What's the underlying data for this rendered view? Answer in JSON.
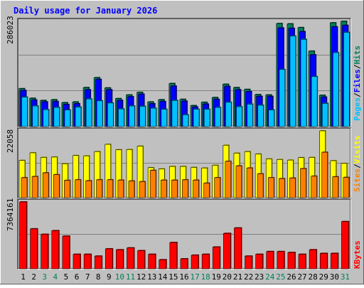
{
  "colors": {
    "background": "#c0c0c0",
    "plot_bg": "#c0c0c0",
    "title": "#0000ff",
    "hits": "#00805c",
    "files": "#0000ff",
    "pages": "#00c0ff",
    "visits": "#ffff00",
    "sites": "#ff8000",
    "kbytes": "#ff0000",
    "weekend_day": "#00805c",
    "weekday": "#000000"
  },
  "chart_data": [
    {
      "type": "bar",
      "title": "Daily usage for January 2026",
      "categories": [
        "1",
        "2",
        "3",
        "4",
        "5",
        "6",
        "7",
        "8",
        "9",
        "10",
        "11",
        "12",
        "13",
        "14",
        "15",
        "16",
        "17",
        "18",
        "19",
        "20",
        "21",
        "22",
        "23",
        "24",
        "25",
        "26",
        "27",
        "28",
        "29",
        "30",
        "31"
      ],
      "weekend_days": [
        "3",
        "4",
        "10",
        "11",
        "17",
        "18",
        "24",
        "25",
        "31"
      ],
      "ylabel_max": "286023",
      "series_labels": {
        "pages": "Pages",
        "files": "Files",
        "hits": "Hits",
        "sep": "/"
      },
      "ylim": [
        0,
        286023
      ],
      "series": [
        {
          "name": "Hits",
          "values": [
            103000,
            77000,
            71000,
            73000,
            65000,
            67000,
            106000,
            133000,
            105000,
            76000,
            86000,
            93000,
            67000,
            73000,
            117000,
            74000,
            57000,
            66000,
            79000,
            115000,
            106000,
            101000,
            87000,
            86000,
            280000,
            279000,
            269000,
            205000,
            85000,
            282000,
            286023
          ]
        },
        {
          "name": "Files",
          "values": [
            98000,
            72000,
            67000,
            68000,
            60000,
            62000,
            100000,
            128000,
            100000,
            71000,
            81000,
            88000,
            62000,
            68000,
            110000,
            69000,
            53000,
            61000,
            74000,
            109000,
            100000,
            95000,
            82000,
            82000,
            268000,
            267000,
            258000,
            195000,
            80000,
            271000,
            275000
          ]
        },
        {
          "name": "Pages",
          "values": [
            80000,
            56000,
            46000,
            52000,
            45000,
            53000,
            75000,
            70000,
            64000,
            48000,
            56000,
            55000,
            50000,
            47000,
            71000,
            32000,
            47000,
            47000,
            52000,
            66000,
            54000,
            61000,
            58000,
            45000,
            155000,
            246000,
            237000,
            136000,
            63000,
            201000,
            256000
          ]
        }
      ]
    },
    {
      "type": "bar",
      "ylabel_max": "22058",
      "series_labels": {
        "sites": "Sites",
        "visits": "Visits",
        "sep": "/"
      },
      "ylim": [
        0,
        22058
      ],
      "series": [
        {
          "name": "Visits",
          "values": [
            12300,
            14800,
            13300,
            13400,
            11200,
            13900,
            13800,
            15200,
            17600,
            15800,
            15900,
            17000,
            9900,
            9500,
            10300,
            10300,
            10000,
            9800,
            10700,
            17300,
            14700,
            15200,
            14400,
            12800,
            12600,
            12400,
            13200,
            13300,
            22058,
            12200,
            11300
          ]
        },
        {
          "name": "Sites",
          "values": [
            6600,
            7000,
            8200,
            7600,
            5700,
            5900,
            5600,
            5900,
            5900,
            5800,
            5500,
            5300,
            9000,
            5800,
            5800,
            5900,
            5800,
            4800,
            6600,
            12000,
            10500,
            9800,
            7900,
            6600,
            6300,
            6500,
            9600,
            7100,
            15000,
            6900,
            6700
          ]
        }
      ]
    },
    {
      "type": "bar",
      "ylabel_max": "7364161",
      "series_labels": {
        "kbytes": "KBytes"
      },
      "ylim": [
        0,
        7364161
      ],
      "series": [
        {
          "name": "KBytes",
          "values": [
            7364161,
            4400000,
            3800000,
            4200000,
            3600000,
            1600000,
            1600000,
            1400000,
            2200000,
            2100000,
            2300000,
            2000000,
            1600000,
            1000000,
            2900000,
            1100000,
            1500000,
            1600000,
            2400000,
            3900000,
            4500000,
            1400000,
            1600000,
            1900000,
            1900000,
            1800000,
            1600000,
            2100000,
            1700000,
            1700000,
            5200000
          ]
        }
      ]
    }
  ]
}
